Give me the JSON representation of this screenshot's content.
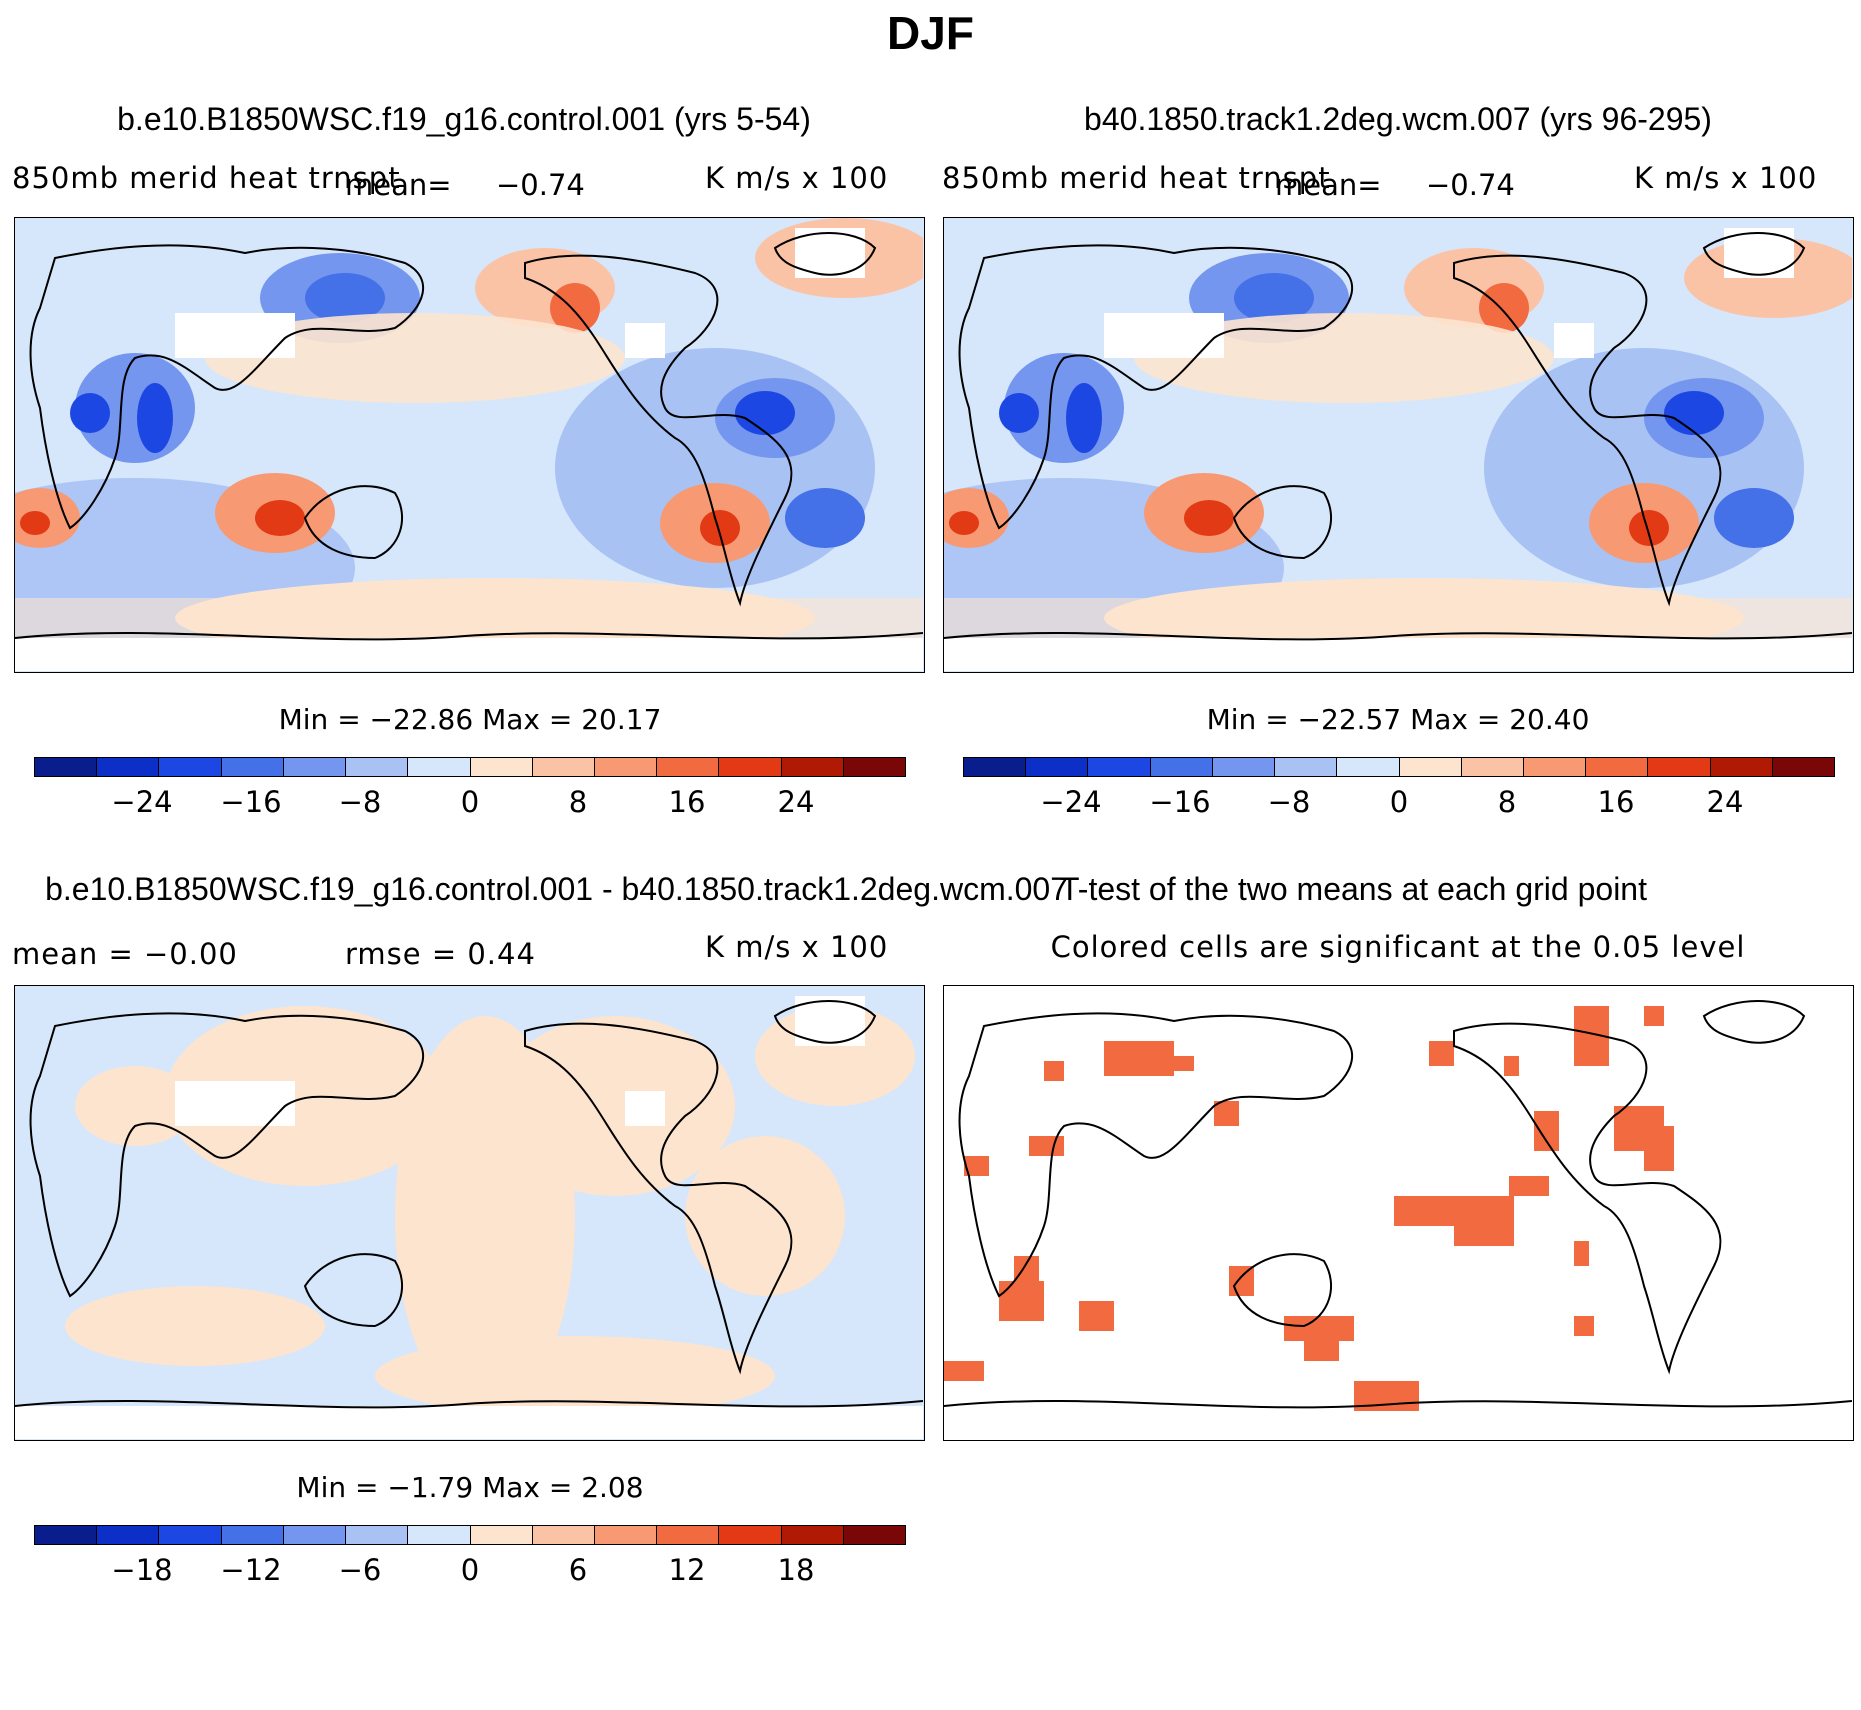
{
  "figure_title": "DJF",
  "panels": {
    "p1": {
      "title": "b.e10.B1850WSC.f19_g16.control.001 (yrs 5-54)",
      "variable": "850mb merid heat trnspt",
      "mean_label": "mean=",
      "mean_value": "−0.74",
      "units": "K m/s x 100",
      "minmax": "Min = −22.86 Max =  20.17",
      "colorbar_ticks": [
        "−24",
        "−16",
        "−8",
        "0",
        "8",
        "16",
        "24"
      ]
    },
    "p2": {
      "title": "b40.1850.track1.2deg.wcm.007 (yrs 96-295)",
      "variable": "850mb merid heat trnspt",
      "mean_label": "mean=",
      "mean_value": "−0.74",
      "units": "K m/s x 100",
      "minmax": "Min = −22.57 Max =  20.40",
      "colorbar_ticks": [
        "−24",
        "−16",
        "−8",
        "0",
        "8",
        "16",
        "24"
      ]
    },
    "p3": {
      "title": "b.e10.B1850WSC.f19_g16.control.001 - b40.1850.track1.2deg.wcm.007",
      "mean_text": "mean =   −0.00",
      "rmse_text": "rmse =   0.44",
      "units": "K m/s x 100",
      "minmax": "Min =  −1.79 Max =  2.08",
      "colorbar_ticks": [
        "−18",
        "−12",
        "−6",
        "0",
        "6",
        "12",
        "18"
      ]
    },
    "p4": {
      "title": "T-test of the two means at each grid point",
      "subtitle": "Colored cells are significant at the 0.05 level"
    }
  },
  "colors": {
    "palette": [
      "#0a1d8c",
      "#0b2fc7",
      "#1d47e3",
      "#4470e8",
      "#7496ee",
      "#a9c2f4",
      "#d6e6fb",
      "#fde4cf",
      "#fbc3a5",
      "#f79a74",
      "#f26a3f",
      "#e23a14",
      "#b01a05",
      "#7a0707"
    ],
    "significant": "#f26a3f"
  }
}
